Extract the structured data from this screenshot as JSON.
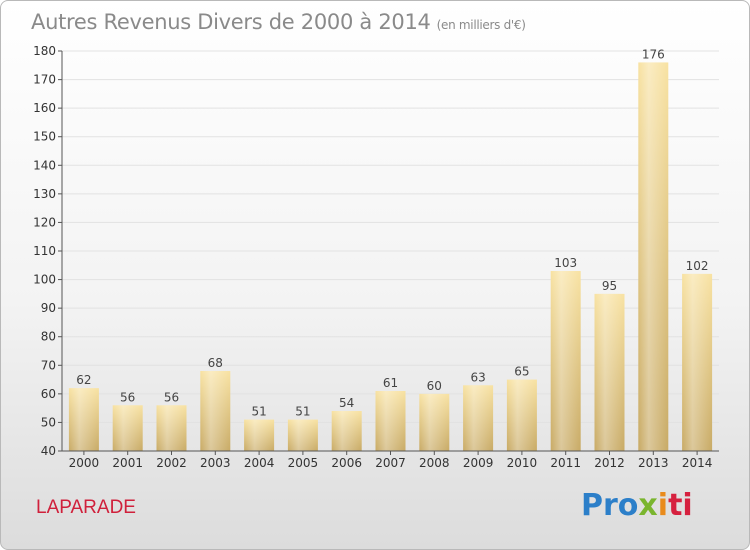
{
  "title": {
    "main": "Autres Revenus Divers de 2000 à 2014",
    "unit": "(en milliers d'€)"
  },
  "place": "LAPARADE",
  "logo": {
    "p1": "Pro",
    "p2": "x",
    "p3": "i",
    "p4": "ti"
  },
  "colors": {
    "bar_light": "#f7df9b",
    "bar_dark": "#c9ab66",
    "grid": "#e4e4e4",
    "title": "#8a8a8a",
    "place": "#d0203b"
  },
  "chart_data": {
    "type": "bar",
    "title": "Autres Revenus Divers de 2000 à 2014",
    "subtitle": "(en milliers d'€)",
    "xlabel": "",
    "ylabel": "",
    "categories": [
      "2000",
      "2001",
      "2002",
      "2003",
      "2004",
      "2005",
      "2006",
      "2007",
      "2008",
      "2009",
      "2010",
      "2011",
      "2012",
      "2013",
      "2014"
    ],
    "values": [
      62,
      56,
      56,
      68,
      51,
      51,
      54,
      61,
      60,
      63,
      65,
      103,
      95,
      176,
      102
    ],
    "ylim": [
      40,
      180
    ],
    "yticks": [
      40,
      50,
      60,
      70,
      80,
      90,
      100,
      110,
      120,
      130,
      140,
      150,
      160,
      170,
      180
    ],
    "grid": true,
    "legend": "none"
  }
}
